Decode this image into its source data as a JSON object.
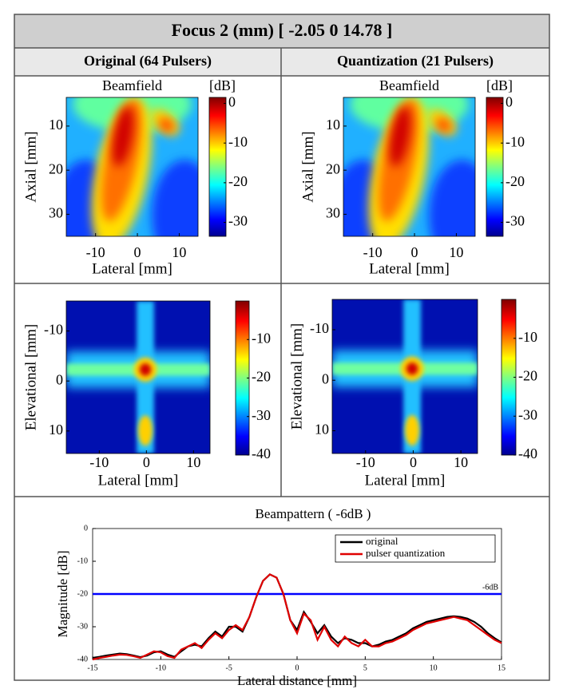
{
  "header": {
    "title": "Focus 2 (mm) [  -2.05 0 14.78 ]"
  },
  "columns": [
    "Original (64 Pulsers)",
    "Quantization (21 Pulsers)"
  ],
  "chart_data": [
    {
      "type": "heatmap",
      "pattern": "beamfield",
      "title": "Beamfield",
      "colorbar_label": "[dB]",
      "xlabel": "Lateral [mm]",
      "ylabel": "Axial [mm]",
      "xlim": [
        -17,
        14.5
      ],
      "ylim": [
        35,
        3.5
      ],
      "xticks": [
        -10,
        0,
        10
      ],
      "yticks": [
        10,
        20,
        30
      ],
      "clim": [
        -33.5,
        1.5
      ],
      "cticks": [
        0,
        -10,
        -20,
        -30
      ]
    },
    {
      "type": "heatmap",
      "pattern": "beamfield",
      "title": "Beamfield",
      "colorbar_label": "[dB]",
      "xlabel": "Lateral [mm]",
      "ylabel": "Axial [mm]",
      "xlim": [
        -17,
        14.5
      ],
      "ylim": [
        35,
        3.5
      ],
      "xticks": [
        -10,
        0,
        10
      ],
      "yticks": [
        10,
        20,
        30
      ],
      "clim": [
        -33.5,
        1.5
      ],
      "cticks": [
        0,
        -10,
        -20,
        -30
      ]
    },
    {
      "type": "heatmap",
      "pattern": "elevational",
      "xlabel": "Lateral [mm]",
      "ylabel": "Elevational [mm]",
      "xlim": [
        -17,
        13.5
      ],
      "ylim": [
        14.5,
        -16
      ],
      "xticks": [
        -10,
        0,
        10
      ],
      "yticks": [
        -10,
        0,
        10
      ],
      "clim": [
        -40,
        0
      ],
      "cticks": [
        -10,
        -20,
        -30,
        -40
      ]
    },
    {
      "type": "heatmap",
      "pattern": "elevational",
      "xlabel": "Lateral [mm]",
      "ylabel": "Elevational [mm]",
      "xlim": [
        -17,
        13.5
      ],
      "ylim": [
        14.5,
        -16
      ],
      "xticks": [
        -10,
        0,
        10
      ],
      "yticks": [
        -10,
        0,
        10
      ],
      "clim": [
        -40,
        0
      ],
      "cticks": [
        -10,
        -20,
        -30,
        -40
      ]
    },
    {
      "type": "line",
      "title": "Beampattern ( -6dB )",
      "xlabel": "Lateral distance [mm]",
      "ylabel": "Magnitude [dB]",
      "xlim": [
        -15,
        15
      ],
      "ylim": [
        -40,
        0
      ],
      "xticks": [
        -15,
        -10,
        -5,
        0,
        5,
        10,
        15
      ],
      "yticks": [
        0,
        -10,
        -20,
        -30,
        -40
      ],
      "legend": "upper right",
      "hline": {
        "value": -20,
        "label": "-6dB",
        "color": "#0000ff"
      },
      "x": [
        -15,
        -14.5,
        -14,
        -13.5,
        -13,
        -12.5,
        -12,
        -11.5,
        -11,
        -10.5,
        -10,
        -9.5,
        -9,
        -8.5,
        -8,
        -7.5,
        -7,
        -6.5,
        -6,
        -5.5,
        -5,
        -4.5,
        -4,
        -3.5,
        -3,
        -2.5,
        -2,
        -1.5,
        -1,
        -0.5,
        0,
        0.5,
        1,
        1.5,
        2,
        2.5,
        3,
        3.5,
        4,
        4.5,
        5,
        5.5,
        6,
        6.5,
        7,
        7.5,
        8,
        8.5,
        9,
        9.5,
        10,
        10.5,
        11,
        11.5,
        12,
        12.5,
        13,
        13.5,
        14,
        14.5,
        15
      ],
      "series": [
        {
          "name": "original",
          "color": "#000000",
          "values": [
            -39.5,
            -39.2,
            -38.8,
            -38.5,
            -38.2,
            -38.4,
            -38.8,
            -39.3,
            -38.8,
            -37.8,
            -37.5,
            -38.5,
            -39.2,
            -37.5,
            -36,
            -35.5,
            -36,
            -33.5,
            -31.5,
            -33,
            -30,
            -30,
            -31.5,
            -27,
            -21,
            -16,
            -14,
            -15,
            -20,
            -28,
            -31,
            -25.5,
            -28.5,
            -32,
            -29.5,
            -33,
            -35,
            -33.5,
            -34,
            -35,
            -35,
            -36,
            -35.5,
            -34.5,
            -34,
            -33,
            -32,
            -30.5,
            -29.5,
            -28.5,
            -28,
            -27.5,
            -27,
            -26.8,
            -27,
            -27.5,
            -28.5,
            -30,
            -32,
            -33.5,
            -34.8
          ]
        },
        {
          "name": "pulser quantization",
          "color": "#e00000",
          "values": [
            -40,
            -39.5,
            -39.2,
            -38.8,
            -38.5,
            -38.6,
            -39,
            -39.5,
            -38.5,
            -37.5,
            -37.8,
            -39,
            -39.5,
            -37,
            -36,
            -35,
            -36.5,
            -34,
            -32,
            -33.5,
            -31,
            -29.5,
            -31,
            -27,
            -21,
            -16,
            -14,
            -15,
            -20,
            -28,
            -32,
            -26,
            -28,
            -34,
            -30,
            -34,
            -36,
            -33,
            -35,
            -36,
            -34,
            -36,
            -36,
            -35,
            -34.5,
            -33.5,
            -32.5,
            -31,
            -30,
            -29,
            -28.5,
            -28,
            -27.5,
            -27,
            -27.5,
            -28,
            -29.5,
            -31,
            -32.5,
            -34,
            -35
          ]
        }
      ]
    }
  ]
}
